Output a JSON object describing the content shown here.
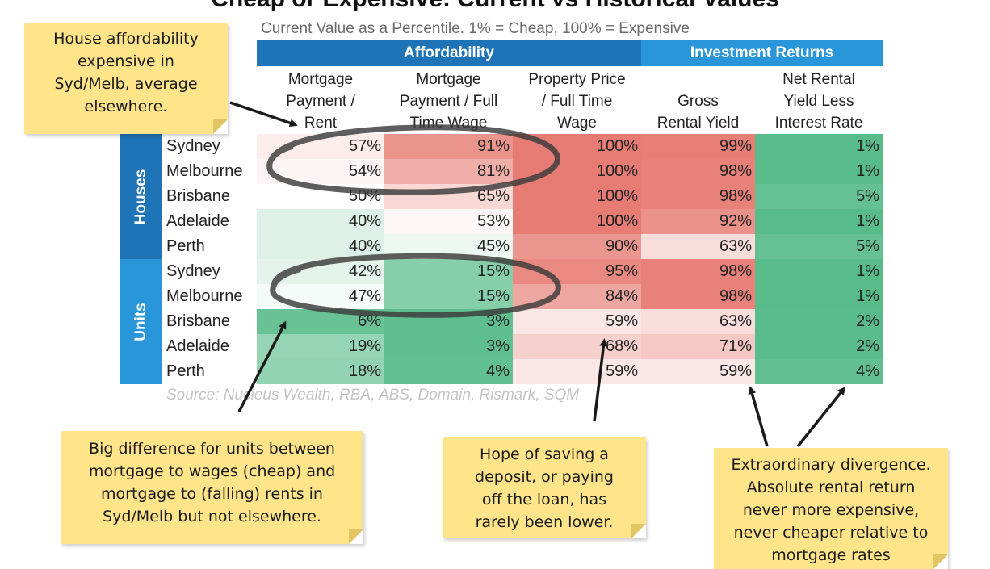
{
  "title": "Cheap or Expensive: Current vs Historical Values",
  "subtitle": "Current Value as a Percentile. 1% = Cheap, 100% = Expensive",
  "groups": {
    "affordability": "Affordability",
    "investment": "Investment Returns"
  },
  "side_labels": {
    "houses": "Houses",
    "units": "Units"
  },
  "colors": {
    "affordability_header": "#1f73b7",
    "investment_header": "#2996d9",
    "cheap": "#57bb8a",
    "neutral": "#ffffff",
    "expensive": "#e67c73"
  },
  "chart_data": {
    "type": "table",
    "title": "Cheap or Expensive: Current vs Historical Values",
    "subtitle": "Current Value as a Percentile. 1% = Cheap, 100% = Expensive",
    "columns": [
      {
        "group": "Affordability",
        "label_lines": [
          "Mortgage",
          "Payment /",
          "Rent"
        ]
      },
      {
        "group": "Affordability",
        "label_lines": [
          "Mortgage",
          "Payment / Full",
          "Time Wage"
        ]
      },
      {
        "group": "Affordability",
        "label_lines": [
          "Property Price",
          "/ Full Time",
          "Wage"
        ]
      },
      {
        "group": "Investment Returns",
        "label_lines": [
          "Gross",
          "Rental Yield"
        ]
      },
      {
        "group": "Investment Returns",
        "label_lines": [
          "Net Rental",
          "Yield Less",
          "Interest Rate"
        ]
      }
    ],
    "rows": [
      {
        "segment": "Houses",
        "city": "Sydney",
        "values": [
          57,
          91,
          100,
          99,
          1
        ]
      },
      {
        "segment": "Houses",
        "city": "Melbourne",
        "values": [
          54,
          81,
          100,
          98,
          1
        ]
      },
      {
        "segment": "Houses",
        "city": "Brisbane",
        "values": [
          50,
          65,
          100,
          98,
          5
        ]
      },
      {
        "segment": "Houses",
        "city": "Adelaide",
        "values": [
          40,
          53,
          100,
          92,
          1
        ]
      },
      {
        "segment": "Houses",
        "city": "Perth",
        "values": [
          40,
          45,
          90,
          63,
          5
        ]
      },
      {
        "segment": "Units",
        "city": "Sydney",
        "values": [
          42,
          15,
          95,
          98,
          1
        ]
      },
      {
        "segment": "Units",
        "city": "Melbourne",
        "values": [
          47,
          15,
          84,
          98,
          1
        ]
      },
      {
        "segment": "Units",
        "city": "Brisbane",
        "values": [
          6,
          3,
          59,
          63,
          2
        ]
      },
      {
        "segment": "Units",
        "city": "Adelaide",
        "values": [
          19,
          3,
          68,
          71,
          2
        ]
      },
      {
        "segment": "Units",
        "city": "Perth",
        "values": [
          18,
          4,
          59,
          59,
          4
        ]
      }
    ],
    "value_suffix": "%",
    "source": "Source: Nucleus Wealth, RBA, ABS, Domain, Rismark, SQM"
  },
  "notes": {
    "note1": [
      "House affordability",
      "expensive in",
      "Syd/Melb, average",
      "elsewhere."
    ],
    "note2": [
      "Big difference for units between",
      "mortgage to wages (cheap) and",
      "mortgage to (falling) rents in",
      "Syd/Melb but not elsewhere."
    ],
    "note3": [
      "Hope of saving a",
      "deposit, or paying",
      "off the loan, has",
      "rarely been lower."
    ],
    "note4": [
      "Extraordinary divergence.",
      "Absolute rental return",
      "never more expensive,",
      "never cheaper relative to",
      "mortgage rates"
    ]
  }
}
